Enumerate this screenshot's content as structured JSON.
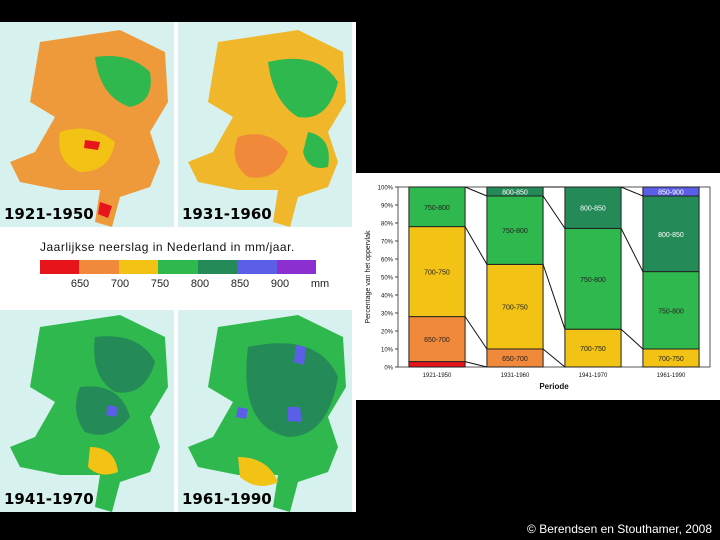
{
  "maps": [
    {
      "label": "1921-1950",
      "base": "#ef9a3a"
    },
    {
      "label": "1931-1960",
      "base": "#f0b72a"
    },
    {
      "label": "1941-1970",
      "base": "#2fb84d"
    },
    {
      "label": "1961-1990",
      "base": "#2fb84d"
    }
  ],
  "legend": {
    "title": "Jaarlijkse neerslag in Nederland in mm/jaar.",
    "colors": [
      "#e8141b",
      "#f08a3a",
      "#f2c214",
      "#2fb84d",
      "#238a58",
      "#5b5fe8",
      "#8b2fd0"
    ],
    "ticks": [
      "650",
      "700",
      "750",
      "800",
      "850",
      "900",
      "mm"
    ]
  },
  "chart_data": {
    "type": "bar",
    "stacked": true,
    "ylabel": "Percentage van het oppervlak",
    "xlabel": "Periode",
    "ylim": [
      0,
      100
    ],
    "yticks": [
      "0%",
      "10%",
      "20%",
      "30%",
      "40%",
      "50%",
      "60%",
      "70%",
      "80%",
      "90%",
      "100%"
    ],
    "categories": [
      "1921-1950",
      "1931-1960",
      "1941-1970",
      "1961-1990"
    ],
    "bars": [
      {
        "segments": [
          {
            "label": "",
            "value": 3,
            "color": "#e8141b"
          },
          {
            "label": "650-700",
            "value": 25,
            "color": "#f08a3a"
          },
          {
            "label": "700-750",
            "value": 50,
            "color": "#f2c214"
          },
          {
            "label": "750-800",
            "value": 22,
            "color": "#2fb84d"
          }
        ]
      },
      {
        "segments": [
          {
            "label": "650-700",
            "value": 10,
            "color": "#f08a3a"
          },
          {
            "label": "700-750",
            "value": 47,
            "color": "#f2c214"
          },
          {
            "label": "750-800",
            "value": 38,
            "color": "#2fb84d"
          },
          {
            "label": "800-850",
            "value": 5,
            "color": "#238a58"
          }
        ]
      },
      {
        "segments": [
          {
            "label": "700-750",
            "value": 21,
            "color": "#f2c214"
          },
          {
            "label": "750-800",
            "value": 56,
            "color": "#2fb84d"
          },
          {
            "label": "800-850",
            "value": 23,
            "color": "#238a58"
          }
        ]
      },
      {
        "segments": [
          {
            "label": "700-750",
            "value": 10,
            "color": "#f2c214"
          },
          {
            "label": "750-800",
            "value": 43,
            "color": "#2fb84d"
          },
          {
            "label": "800-850",
            "value": 42,
            "color": "#238a58"
          },
          {
            "label": "850-900",
            "value": 5,
            "color": "#5b5fe8"
          }
        ]
      }
    ]
  },
  "copyright": "© Berendsen en Stouthamer, 2008"
}
